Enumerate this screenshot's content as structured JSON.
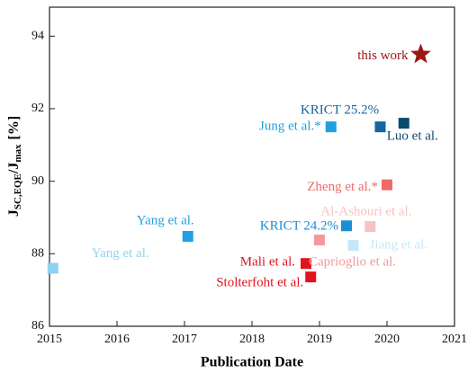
{
  "chart_data": {
    "type": "scatter",
    "xlabel": "Publication Date",
    "ylabel": [
      "J",
      "SC,EQE",
      "/J",
      "max",
      "[%]"
    ],
    "xlim": [
      2015,
      2021
    ],
    "xticks": [
      2015,
      2016,
      2017,
      2018,
      2019,
      2020,
      2021
    ],
    "ylim": [
      86,
      94.8
    ],
    "yticks": [
      86,
      88,
      90,
      92,
      94
    ],
    "series": [
      {
        "name": "Yang et al.",
        "color": "#8fd2f2",
        "marker": "square",
        "x": [
          2015.05
        ],
        "values": [
          87.6
        ]
      },
      {
        "name": "Yang et al.",
        "color": "#1fa0e2",
        "marker": "square",
        "x": [
          2017.05
        ],
        "values": [
          88.48
        ]
      },
      {
        "name": "Mali et al.",
        "color": "#e3121c",
        "marker": "square",
        "x": [
          2018.8
        ],
        "values": [
          87.73
        ]
      },
      {
        "name": "Stolterfoht et al.",
        "color": "#e3121c",
        "marker": "square",
        "x": [
          2018.87
        ],
        "values": [
          87.36
        ]
      },
      {
        "name": "Jung et al.*",
        "color": "#1fa0e2",
        "marker": "square",
        "x": [
          2019.17
        ],
        "values": [
          91.5
        ]
      },
      {
        "name": "KRICT 24.2%",
        "color": "#1b8fd6",
        "marker": "square",
        "x": [
          2019.4
        ],
        "values": [
          88.77
        ]
      },
      {
        "name": "Caprioglio et al.",
        "color": "#f29a9a",
        "marker": "square",
        "x": [
          2019.0
        ],
        "values": [
          88.38
        ]
      },
      {
        "name": "Jiang et al.",
        "color": "#c5e8f8",
        "marker": "square",
        "x": [
          2019.5
        ],
        "values": [
          88.23
        ]
      },
      {
        "name": "Al-Ashouri et al.",
        "color": "#f6c2c2",
        "marker": "square",
        "x": [
          2019.75
        ],
        "values": [
          88.75
        ]
      },
      {
        "name": "Zheng et al.*",
        "color": "#ee6a6a",
        "marker": "square",
        "x": [
          2020.0
        ],
        "values": [
          89.9
        ]
      },
      {
        "name": "KRICT 25.2%",
        "color": "#1466a0",
        "marker": "square",
        "x": [
          2019.9
        ],
        "values": [
          91.5
        ]
      },
      {
        "name": "Luo et al.",
        "color": "#0c4a70",
        "marker": "square",
        "x": [
          2020.25
        ],
        "values": [
          91.6
        ]
      },
      {
        "name": "this work",
        "color": "#9c1414",
        "marker": "star",
        "x": [
          2020.5
        ],
        "values": [
          93.5
        ]
      }
    ]
  }
}
